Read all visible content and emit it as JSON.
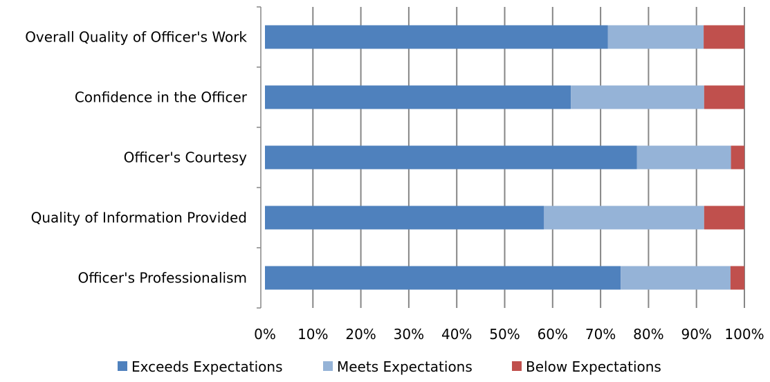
{
  "chart_data": {
    "type": "bar",
    "orientation": "horizontal",
    "stacked": "percent",
    "categories": [
      "Overall Quality of Officer's Work",
      "Confidence in the Officer",
      "Officer's Courtesy",
      "Quality of Information Provided",
      "Officer's Professionalism"
    ],
    "series": [
      {
        "name": "Exceeds Expectations",
        "color": "#4f81bd",
        "values": [
          71.5,
          63.8,
          77.6,
          58.2,
          74.2
        ]
      },
      {
        "name": "Meets Expectations",
        "color": "#95b3d7",
        "values": [
          20.0,
          27.8,
          19.6,
          33.4,
          22.9
        ]
      },
      {
        "name": "Below Expectations",
        "color": "#c0504d",
        "values": [
          8.5,
          8.4,
          2.8,
          8.4,
          2.9
        ]
      }
    ],
    "xlim": [
      0,
      100
    ],
    "xticks": [
      "0%",
      "10%",
      "20%",
      "30%",
      "40%",
      "50%",
      "60%",
      "70%",
      "80%",
      "90%",
      "100%"
    ],
    "grid": true,
    "gridline_color": "#868686",
    "legend_position": "bottom"
  }
}
